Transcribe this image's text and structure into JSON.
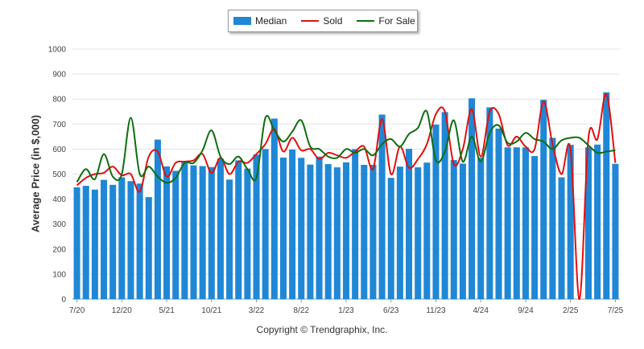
{
  "chart_data": {
    "type": "bar",
    "ylabel": "Average Price (in $,000)",
    "xlabel": "",
    "ylim": [
      0,
      1000
    ],
    "yticks": [
      0,
      100,
      200,
      300,
      400,
      500,
      600,
      700,
      800,
      900,
      1000
    ],
    "grid": "horizontal",
    "legend_position": "top-center",
    "months": [
      "7/20",
      "8/20",
      "9/20",
      "10/20",
      "11/20",
      "12/20",
      "1/21",
      "2/21",
      "3/21",
      "4/21",
      "5/21",
      "6/21",
      "7/21",
      "8/21",
      "9/21",
      "10/21",
      "11/21",
      "12/21",
      "1/22",
      "2/22",
      "3/22",
      "4/22",
      "5/22",
      "6/22",
      "7/22",
      "8/22",
      "9/22",
      "10/22",
      "11/22",
      "12/22",
      "1/23",
      "2/23",
      "3/23",
      "4/23",
      "5/23",
      "6/23",
      "7/23",
      "8/23",
      "9/23",
      "10/23",
      "11/23",
      "12/23",
      "1/24",
      "2/24",
      "3/24",
      "4/24",
      "5/24",
      "6/24",
      "7/24",
      "8/24",
      "9/24",
      "10/24",
      "11/24",
      "12/24",
      "1/25",
      "2/25",
      "3/25",
      "4/25",
      "5/25",
      "6/25",
      "7/25"
    ],
    "x_tick_labels": [
      "7/20",
      "12/20",
      "5/21",
      "10/21",
      "3/22",
      "8/22",
      "1/23",
      "6/23",
      "11/23",
      "4/24",
      "9/24",
      "2/25",
      "7/25"
    ],
    "series": [
      {
        "name": "Median",
        "kind": "bar",
        "color": "#1f87d6",
        "values": [
          447,
          453,
          438,
          477,
          457,
          487,
          472,
          462,
          408,
          638,
          531,
          513,
          553,
          535,
          532,
          528,
          562,
          478,
          555,
          522,
          578,
          600,
          722,
          566,
          598,
          565,
          538,
          570,
          540,
          527,
          547,
          600,
          537,
          537,
          738,
          485,
          530,
          601,
          527,
          546,
          698,
          748,
          556,
          542,
          803,
          565,
          767,
          682,
          607,
          607,
          607,
          572,
          797,
          645,
          487,
          617,
          0,
          607,
          618,
          827,
          541
        ]
      },
      {
        "name": "Sold",
        "kind": "line",
        "color": "#e01010",
        "values": [
          455,
          485,
          500,
          505,
          530,
          495,
          500,
          430,
          570,
          590,
          490,
          545,
          550,
          555,
          580,
          505,
          565,
          500,
          550,
          545,
          580,
          620,
          680,
          590,
          645,
          595,
          600,
          560,
          585,
          575,
          565,
          590,
          610,
          520,
          720,
          500,
          610,
          525,
          560,
          620,
          740,
          750,
          540,
          600,
          760,
          570,
          750,
          740,
          615,
          650,
          610,
          600,
          790,
          620,
          500,
          600,
          0,
          645,
          640,
          820,
          545
        ]
      },
      {
        "name": "For Sale",
        "kind": "line",
        "color": "#0e6e10",
        "values": [
          468,
          520,
          480,
          580,
          490,
          500,
          725,
          500,
          530,
          490,
          465,
          485,
          545,
          545,
          595,
          675,
          570,
          540,
          570,
          520,
          485,
          725,
          675,
          630,
          670,
          715,
          610,
          600,
          570,
          565,
          600,
          585,
          600,
          575,
          620,
          640,
          610,
          660,
          685,
          750,
          555,
          590,
          715,
          550,
          650,
          550,
          665,
          695,
          625,
          630,
          665,
          640,
          630,
          600,
          635,
          645,
          645,
          615,
          585,
          590,
          595
        ]
      }
    ]
  },
  "legend": [
    {
      "label": "Median",
      "color": "#1f87d6",
      "kind": "bar"
    },
    {
      "label": "Sold",
      "color": "#e01010",
      "kind": "line"
    },
    {
      "label": "For Sale",
      "color": "#0e6e10",
      "kind": "line"
    }
  ],
  "footer": {
    "copyright": "Copyright © Trendgraphix, Inc."
  }
}
